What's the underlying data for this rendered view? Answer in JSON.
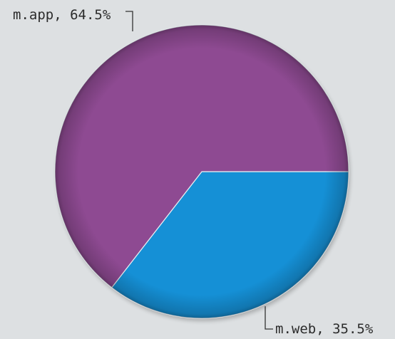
{
  "chart_data": {
    "type": "pie",
    "slices": [
      {
        "label": "m.app",
        "value": 64.5,
        "text": "m.app, 64.5%",
        "color": "#8e4a92"
      },
      {
        "label": "m.web",
        "value": 35.5,
        "text": "m.web, 35.5%",
        "color": "#1590d6"
      }
    ],
    "legend": "none"
  }
}
